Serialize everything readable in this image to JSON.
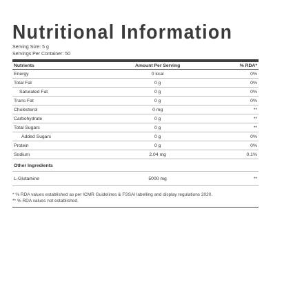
{
  "title": "Nutritional Information",
  "serving_size": "Serving Size: 5 g",
  "servings_per_container": "Servings Per Container: 50",
  "headers": {
    "nutrients": "Nutrients",
    "amount": "Amount Per Serving",
    "rda": "% RDA*"
  },
  "rows": [
    {
      "name": "Energy",
      "amount": "0 kcal",
      "rda": "0%",
      "indent": 0
    },
    {
      "name": "Total Fat",
      "amount": "0 g",
      "rda": "0%",
      "indent": 0
    },
    {
      "name": "Saturated Fat",
      "amount": "0 g",
      "rda": "0%",
      "indent": 1
    },
    {
      "name": "Trans Fat",
      "amount": "0 g",
      "rda": "0%",
      "indent": 0
    },
    {
      "name": "Cholesterol",
      "amount": "0 mg",
      "rda": "**",
      "indent": 0
    },
    {
      "name": "Carbohydrate",
      "amount": "0 g",
      "rda": "**",
      "indent": 0
    },
    {
      "name": "Total Sugars",
      "amount": "0 g",
      "rda": "**",
      "indent": 0
    },
    {
      "name": "Added Sugars",
      "amount": "0 g",
      "rda": "0%",
      "indent": 2
    },
    {
      "name": "Protein",
      "amount": "0 g",
      "rda": "0%",
      "indent": 0
    },
    {
      "name": "Sodium",
      "amount": "2.04 mg",
      "rda": "0.1%",
      "indent": 0
    }
  ],
  "other_ingredients_heading": "Other Ingredients",
  "ingredients": [
    {
      "name": "L-Glutamine",
      "amount": "5000 mg",
      "rda": "**"
    }
  ],
  "footnote_1": "* % RDA values established as per ICMR Guidelines & FSSAI labelling and display regulations 2020.",
  "footnote_2": "** % RDA values not established."
}
